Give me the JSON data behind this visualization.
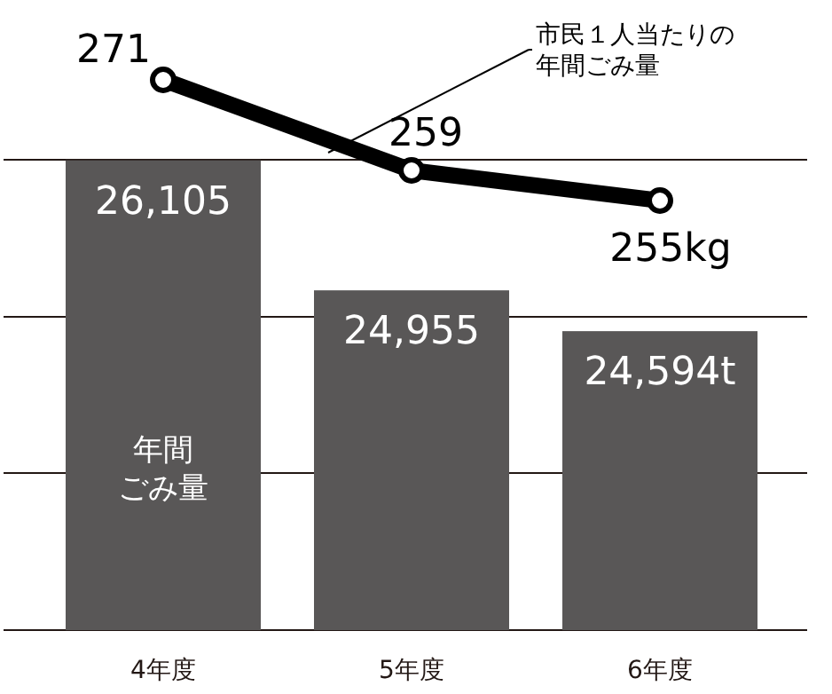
{
  "chart_data": {
    "type": "bar",
    "categories": [
      "4年度",
      "5年度",
      "6年度"
    ],
    "series": [
      {
        "color": "#595757",
        "values": [
          26105,
          24955,
          24594
        ],
        "value_labels": [
          "26,105",
          "24,955",
          "24,594t"
        ]
      },
      {
        "type": "line",
        "axis": "y2",
        "color": "#000000",
        "values": [
          271,
          259,
          255
        ],
        "value_labels": [
          "271",
          "259",
          "255kg"
        ],
        "marker": "circle"
      }
    ],
    "ylim": [
      21950,
      26110
    ],
    "yticks": [
      {
        "value": 23340,
        "label": null
      },
      {
        "value": 24720,
        "label": null
      },
      {
        "value": 26110,
        "label": null
      }
    ],
    "grid": "y",
    "tick_labels": "x",
    "annotations": [
      "市民１人当たりの年間ごみ量",
      "年間ごみ量"
    ]
  }
}
